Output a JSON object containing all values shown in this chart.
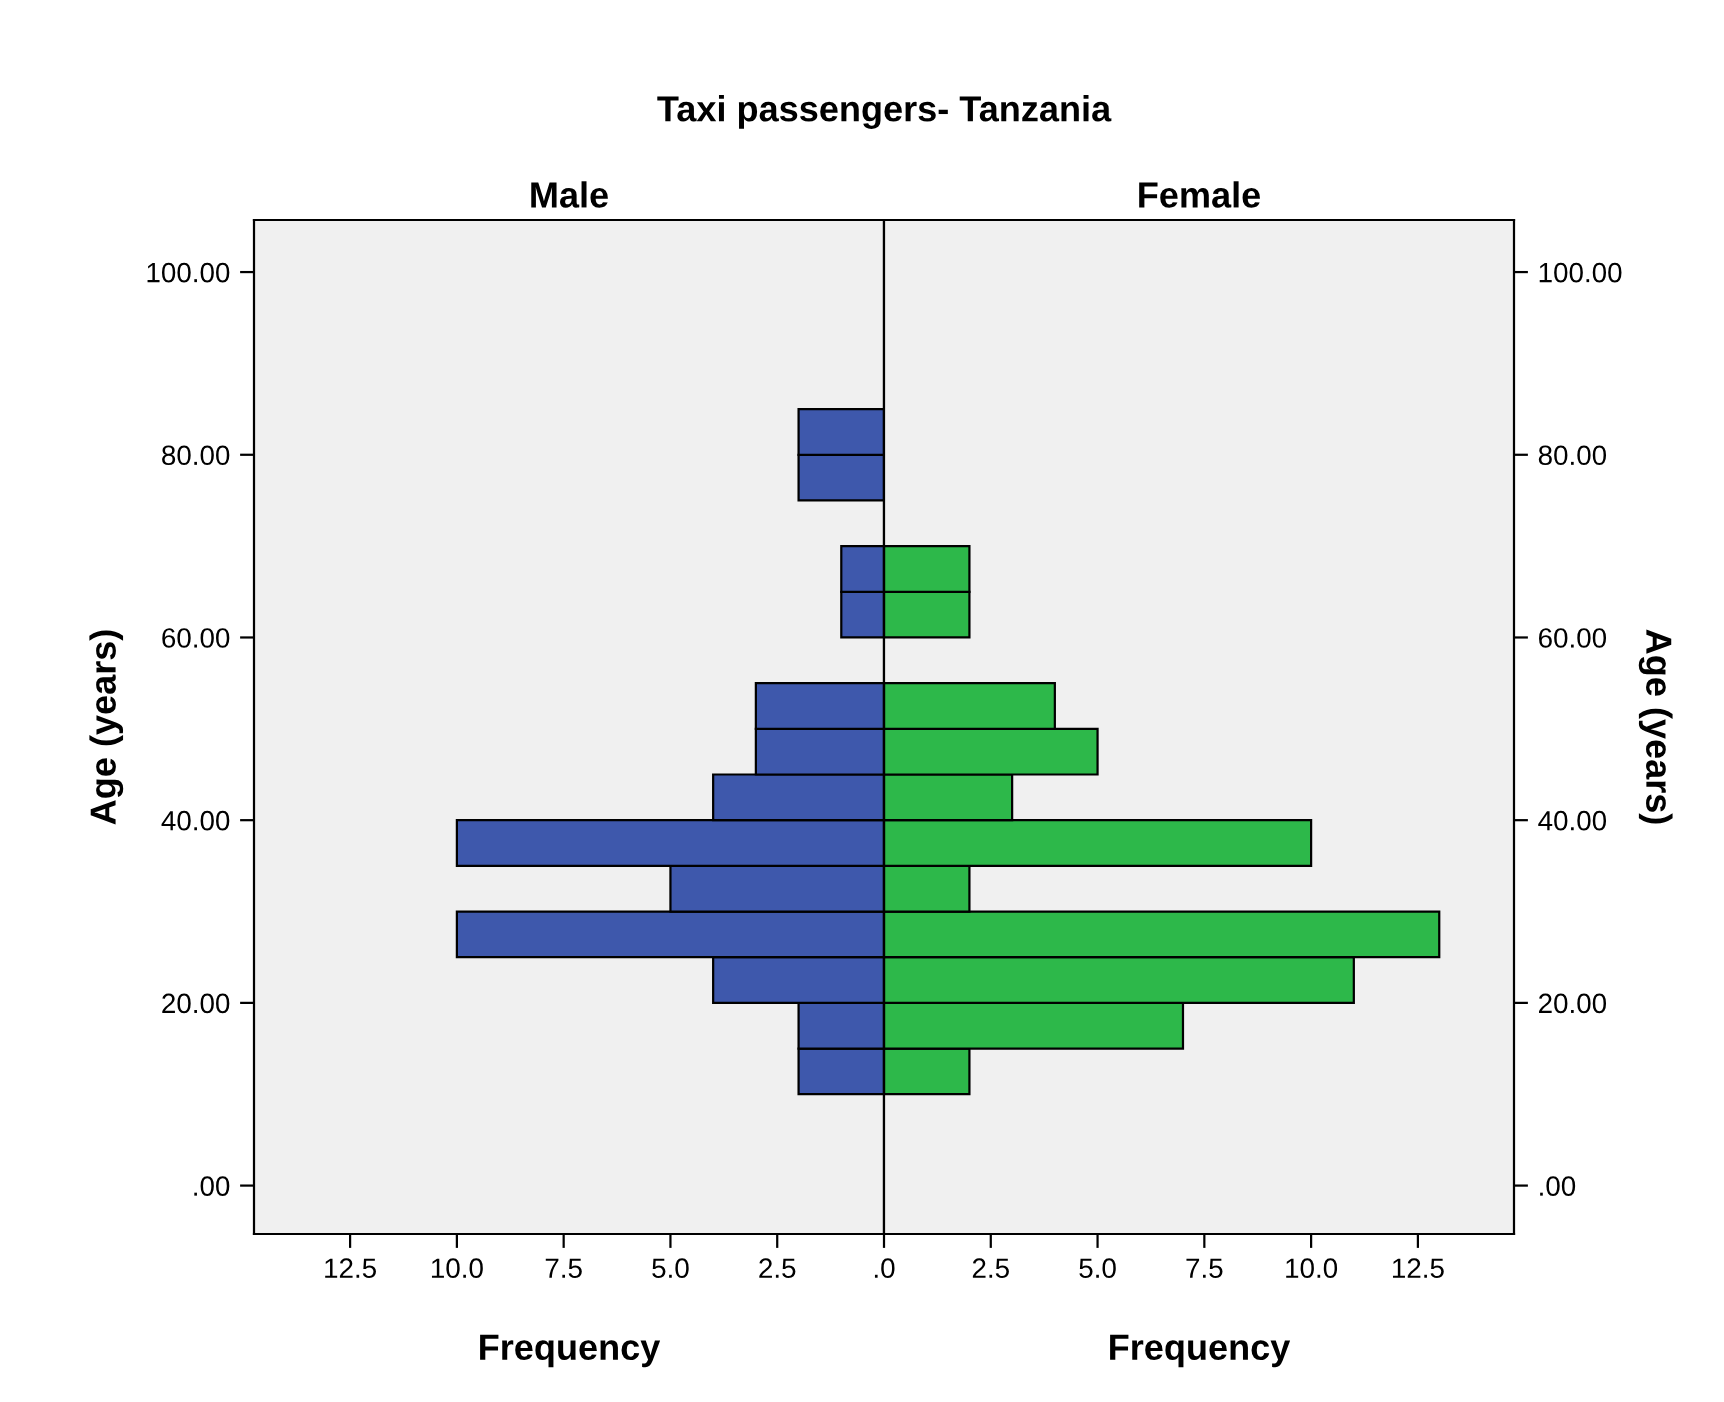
{
  "chart_data": [
    {
      "type": "histogram",
      "orientation": "horizontal",
      "title": "Taxi passengers- Tanzania",
      "subtitle": "Male",
      "xlabel": "Frequency",
      "ylabel": "Age (years)",
      "grid": false,
      "legend": false,
      "bins": [
        10,
        15,
        20,
        25,
        30,
        35,
        40,
        45,
        50,
        55,
        60,
        65,
        70,
        75,
        80,
        85
      ],
      "series": [
        {
          "color": "#3e58ac",
          "values": [
            2,
            2,
            4,
            10,
            5,
            10,
            4,
            3,
            3,
            0,
            1,
            1,
            0,
            2,
            2
          ]
        }
      ],
      "xlim": [
        14.75,
        0
      ],
      "xticks": [
        {
          "value": 12.5,
          "label": "12.5"
        },
        {
          "value": 10,
          "label": "10.0"
        },
        {
          "value": 7.5,
          "label": "7.5"
        },
        {
          "value": 5,
          "label": "5.0"
        },
        {
          "value": 2.5,
          "label": "2.5"
        },
        {
          "value": 0,
          "label": ".0"
        }
      ],
      "ylim": [
        -5.3,
        105.7
      ],
      "yticks": [
        {
          "value": 0,
          "label": ".00"
        },
        {
          "value": 20,
          "label": "20.00"
        },
        {
          "value": 40,
          "label": "40.00"
        },
        {
          "value": 60,
          "label": "60.00"
        },
        {
          "value": 80,
          "label": "80.00"
        },
        {
          "value": 100,
          "label": "100.00"
        }
      ]
    },
    {
      "type": "histogram",
      "orientation": "horizontal",
      "subtitle": "Female",
      "xlabel": "Frequency",
      "ylabel": "Age (years)",
      "grid": false,
      "legend": false,
      "bins": [
        10,
        15,
        20,
        25,
        30,
        35,
        40,
        45,
        50,
        55,
        60,
        65,
        70,
        75,
        80,
        85
      ],
      "series": [
        {
          "color": "#2db84a",
          "values": [
            2,
            7,
            11,
            13,
            2,
            10,
            3,
            5,
            4,
            0,
            2,
            2,
            0,
            0,
            0
          ]
        }
      ],
      "xlim": [
        0,
        14.75
      ],
      "xticks": [
        {
          "value": 2.5,
          "label": "2.5"
        },
        {
          "value": 5,
          "label": "5.0"
        },
        {
          "value": 7.5,
          "label": "7.5"
        },
        {
          "value": 10,
          "label": "10.0"
        },
        {
          "value": 12.5,
          "label": "12.5"
        }
      ],
      "ylim": [
        -5.3,
        105.7
      ],
      "yticks": [
        {
          "value": 0,
          "label": ".00"
        },
        {
          "value": 20,
          "label": "20.00"
        },
        {
          "value": 40,
          "label": "40.00"
        },
        {
          "value": 60,
          "label": "60.00"
        },
        {
          "value": 80,
          "label": "80.00"
        },
        {
          "value": 100,
          "label": "100.00"
        }
      ]
    }
  ]
}
